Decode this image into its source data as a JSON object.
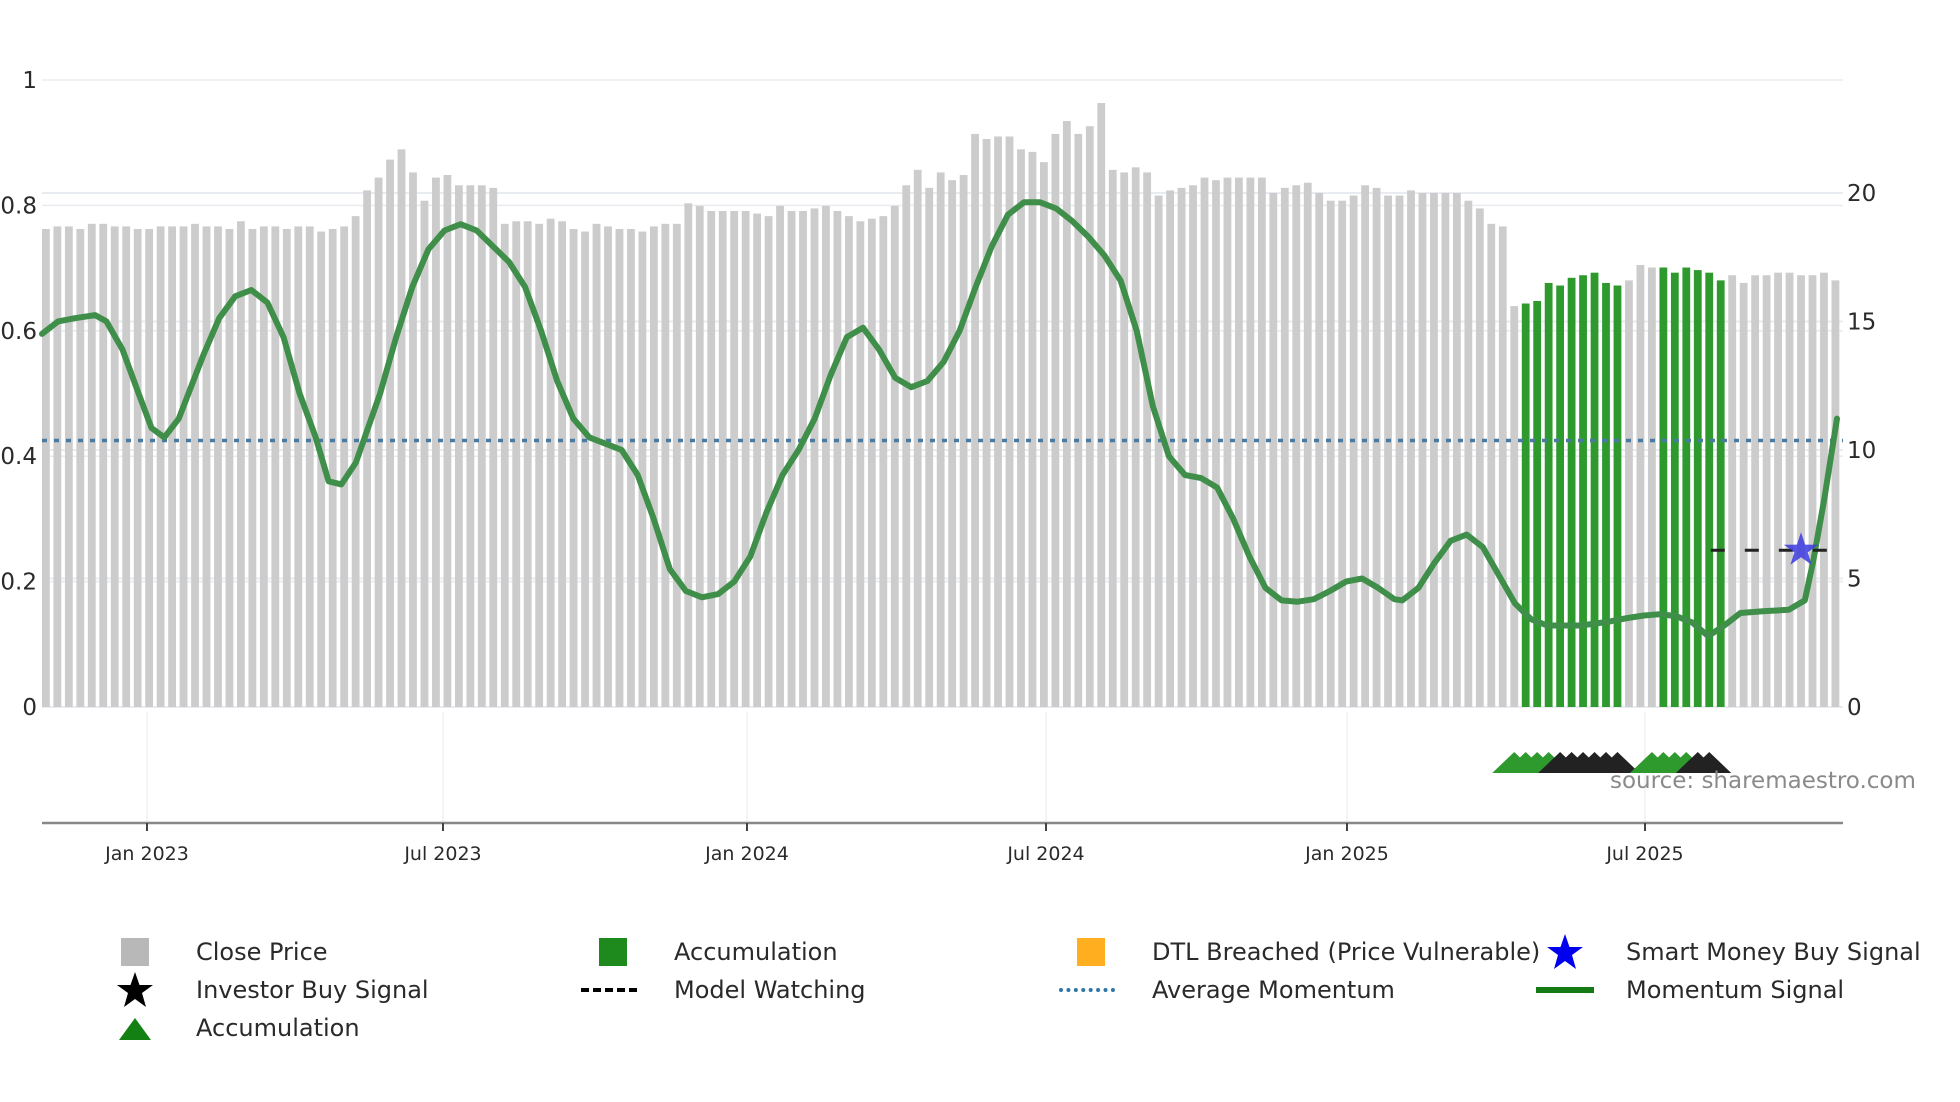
{
  "chart_data": {
    "type": "bar",
    "title": "",
    "xlabel": "",
    "ylabel_left": "",
    "ylabel_right": "",
    "x_tick_labels": [
      "Jan 2023",
      "Jul 2023",
      "Jan 2024",
      "Jul 2024",
      "Jan 2025",
      "Jul 2025"
    ],
    "left_axis": {
      "ticks": [
        "0",
        "0.2",
        "0.4",
        "0.6",
        "0.8",
        "1"
      ],
      "range": [
        0,
        1
      ]
    },
    "right_axis": {
      "ticks": [
        "0",
        "5",
        "10",
        "15",
        "20"
      ],
      "range": [
        0,
        24.4
      ]
    },
    "grid": true,
    "legend_position": "bottom",
    "close_price": [
      18.6,
      18.7,
      18.7,
      18.6,
      18.8,
      18.8,
      18.7,
      18.7,
      18.6,
      18.6,
      18.7,
      18.7,
      18.7,
      18.8,
      18.7,
      18.7,
      18.6,
      18.9,
      18.6,
      18.7,
      18.7,
      18.6,
      18.7,
      18.7,
      18.5,
      18.6,
      18.7,
      19.1,
      20.1,
      20.6,
      21.3,
      21.7,
      20.8,
      19.7,
      20.6,
      20.7,
      20.3,
      20.3,
      20.3,
      20.2,
      18.8,
      18.9,
      18.9,
      18.8,
      19.0,
      18.9,
      18.6,
      18.5,
      18.8,
      18.7,
      18.6,
      18.6,
      18.5,
      18.7,
      18.8,
      18.8,
      19.6,
      19.5,
      19.3,
      19.3,
      19.3,
      19.3,
      19.2,
      19.1,
      19.5,
      19.3,
      19.3,
      19.4,
      19.5,
      19.3,
      19.1,
      18.9,
      19.0,
      19.1,
      19.5,
      20.3,
      20.9,
      20.2,
      20.8,
      20.5,
      20.7,
      22.3,
      22.1,
      22.2,
      22.2,
      21.7,
      21.6,
      21.2,
      22.3,
      22.8,
      22.3,
      22.6,
      23.5,
      20.9,
      20.8,
      21.0,
      20.8,
      19.9,
      20.1,
      20.2,
      20.3,
      20.6,
      20.5,
      20.6,
      20.6,
      20.6,
      20.6,
      20.0,
      20.2,
      20.3,
      20.4,
      20.0,
      19.7,
      19.7,
      19.9,
      20.3,
      20.2,
      19.9,
      19.9,
      20.1,
      20.0,
      20.0,
      20.0,
      20.0,
      19.7,
      19.4,
      18.8,
      18.7,
      15.6,
      15.7,
      15.8,
      16.5,
      16.4,
      16.7,
      16.8,
      16.9,
      16.5,
      16.4,
      16.6,
      17.2,
      17.1,
      17.1,
      16.9,
      17.1,
      17.0,
      16.9,
      16.6,
      16.8,
      16.5,
      16.8,
      16.8,
      16.9,
      16.9,
      16.8,
      16.8,
      16.9,
      16.6
    ],
    "accumulation_bars_index": [
      129,
      130,
      131,
      132,
      133,
      134,
      135,
      136,
      137,
      141,
      142,
      143,
      144,
      145,
      146
    ],
    "momentum_signal": [
      [
        0,
        0.595
      ],
      [
        0.01,
        0.615
      ],
      [
        0.02,
        0.62
      ],
      [
        0.033,
        0.625
      ],
      [
        0.04,
        0.615
      ],
      [
        0.05,
        0.57
      ],
      [
        0.06,
        0.5
      ],
      [
        0.068,
        0.445
      ],
      [
        0.076,
        0.43
      ],
      [
        0.085,
        0.46
      ],
      [
        0.1,
        0.56
      ],
      [
        0.11,
        0.62
      ],
      [
        0.12,
        0.655
      ],
      [
        0.13,
        0.665
      ],
      [
        0.14,
        0.645
      ],
      [
        0.15,
        0.59
      ],
      [
        0.16,
        0.5
      ],
      [
        0.17,
        0.43
      ],
      [
        0.178,
        0.36
      ],
      [
        0.186,
        0.355
      ],
      [
        0.195,
        0.39
      ],
      [
        0.21,
        0.5
      ],
      [
        0.22,
        0.59
      ],
      [
        0.23,
        0.67
      ],
      [
        0.24,
        0.73
      ],
      [
        0.25,
        0.76
      ],
      [
        0.26,
        0.77
      ],
      [
        0.27,
        0.76
      ],
      [
        0.28,
        0.735
      ],
      [
        0.29,
        0.71
      ],
      [
        0.3,
        0.67
      ],
      [
        0.31,
        0.6
      ],
      [
        0.32,
        0.52
      ],
      [
        0.33,
        0.46
      ],
      [
        0.34,
        0.43
      ],
      [
        0.35,
        0.42
      ],
      [
        0.36,
        0.41
      ],
      [
        0.37,
        0.37
      ],
      [
        0.38,
        0.3
      ],
      [
        0.39,
        0.22
      ],
      [
        0.4,
        0.185
      ],
      [
        0.41,
        0.175
      ],
      [
        0.42,
        0.18
      ],
      [
        0.43,
        0.2
      ],
      [
        0.44,
        0.24
      ],
      [
        0.45,
        0.31
      ],
      [
        0.46,
        0.37
      ],
      [
        0.47,
        0.41
      ],
      [
        0.48,
        0.46
      ],
      [
        0.49,
        0.53
      ],
      [
        0.5,
        0.59
      ],
      [
        0.51,
        0.605
      ],
      [
        0.52,
        0.57
      ],
      [
        0.53,
        0.525
      ],
      [
        0.54,
        0.51
      ],
      [
        0.55,
        0.52
      ],
      [
        0.56,
        0.55
      ],
      [
        0.57,
        0.6
      ],
      [
        0.58,
        0.67
      ],
      [
        0.59,
        0.735
      ],
      [
        0.6,
        0.785
      ],
      [
        0.61,
        0.805
      ],
      [
        0.62,
        0.805
      ],
      [
        0.63,
        0.795
      ],
      [
        0.64,
        0.775
      ],
      [
        0.65,
        0.75
      ],
      [
        0.66,
        0.72
      ],
      [
        0.67,
        0.68
      ],
      [
        0.68,
        0.6
      ],
      [
        0.69,
        0.48
      ],
      [
        0.7,
        0.4
      ],
      [
        0.71,
        0.37
      ],
      [
        0.72,
        0.365
      ],
      [
        0.73,
        0.35
      ],
      [
        0.74,
        0.3
      ],
      [
        0.75,
        0.24
      ],
      [
        0.76,
        0.19
      ],
      [
        0.77,
        0.17
      ],
      [
        0.78,
        0.168
      ],
      [
        0.79,
        0.172
      ],
      [
        0.8,
        0.185
      ],
      [
        0.81,
        0.2
      ],
      [
        0.82,
        0.205
      ],
      [
        0.83,
        0.19
      ],
      [
        0.84,
        0.172
      ],
      [
        0.845,
        0.17
      ],
      [
        0.855,
        0.19
      ],
      [
        0.865,
        0.23
      ],
      [
        0.875,
        0.265
      ],
      [
        0.885,
        0.275
      ],
      [
        0.895,
        0.255
      ],
      [
        0.905,
        0.21
      ],
      [
        0.915,
        0.165
      ],
      [
        0.925,
        0.14
      ],
      [
        0.935,
        0.13
      ],
      [
        0.945,
        0.13
      ],
      [
        0.955,
        0.13
      ],
      [
        0.965,
        0.133
      ],
      [
        0.975,
        0.137
      ],
      [
        0.985,
        0.142
      ],
      [
        0.995,
        0.146
      ],
      [
        1.005,
        0.148
      ],
      [
        1.015,
        0.145
      ],
      [
        1.025,
        0.135
      ],
      [
        1.035,
        0.113
      ],
      [
        1.045,
        0.13
      ],
      [
        1.055,
        0.15
      ],
      [
        1.07,
        0.153
      ],
      [
        1.085,
        0.155
      ],
      [
        1.095,
        0.17
      ],
      [
        1.1,
        0.23
      ],
      [
        1.107,
        0.33
      ],
      [
        1.115,
        0.46
      ]
    ],
    "momentum_x_scale": 1.115,
    "average_momentum": 0.425,
    "model_watching": {
      "y": 0.25,
      "x_from_index": 146,
      "x_to_index": 156
    },
    "smart_money_buy_signal": {
      "index": 153,
      "y": 0.25
    },
    "triangle_markers": [
      {
        "start_index": 128,
        "green": 4,
        "black": 6
      },
      {
        "start_index": 140,
        "green": 4,
        "black": 2
      }
    ],
    "colors": {
      "close_price": "#cccccc",
      "accumulation": "#2e9a2e",
      "momentum": "#3f8f4a",
      "average": "#4a7aa0",
      "smart_money": "#3a3adf",
      "grid": "#e8ebf0",
      "axis": "#888888"
    }
  },
  "legend": {
    "items": [
      {
        "label": "Close Price"
      },
      {
        "label": "Accumulation"
      },
      {
        "label": "DTL Breached (Price Vulnerable)"
      },
      {
        "label": "Smart Money Buy Signal"
      },
      {
        "label": "Investor Buy Signal"
      },
      {
        "label": "Model Watching"
      },
      {
        "label": "Average Momentum"
      },
      {
        "label": "Momentum Signal"
      },
      {
        "label": "Accumulation"
      }
    ]
  },
  "source": "source: sharemaestro.com"
}
